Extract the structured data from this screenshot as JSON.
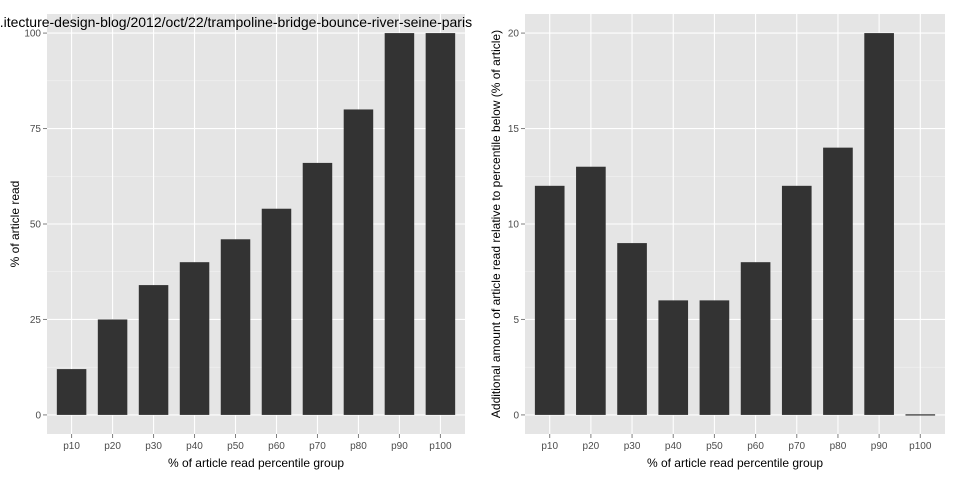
{
  "chart_data": [
    {
      "type": "bar",
      "title": "...itecture-design-blog/2012/oct/22/trampoline-bridge-bounce-river-seine-paris",
      "xlabel": "% of article read percentile group",
      "ylabel": "% of article read",
      "categories": [
        "p10",
        "p20",
        "p30",
        "p40",
        "p50",
        "p60",
        "p70",
        "p80",
        "p90",
        "p100"
      ],
      "values": [
        12,
        25,
        34,
        40,
        46,
        54,
        66,
        80,
        100,
        100
      ],
      "yticks": [
        0,
        25,
        50,
        75,
        100
      ],
      "ylim": [
        -5,
        105
      ],
      "grid": true,
      "bar_color": "#333333",
      "panel_color": "#e5e5e5"
    },
    {
      "type": "bar",
      "title": "",
      "xlabel": "% of article read percentile group",
      "ylabel": "Additional amount of article read relative to percentile below (% of article)",
      "categories": [
        "p10",
        "p20",
        "p30",
        "p40",
        "p50",
        "p60",
        "p70",
        "p80",
        "p90",
        "p100"
      ],
      "values": [
        12,
        13,
        9,
        6,
        6,
        8,
        12,
        14,
        20,
        0
      ],
      "yticks": [
        0,
        5,
        10,
        15,
        20
      ],
      "ylim": [
        -1,
        21
      ],
      "grid": true,
      "bar_color": "#333333",
      "panel_color": "#e5e5e5"
    }
  ]
}
